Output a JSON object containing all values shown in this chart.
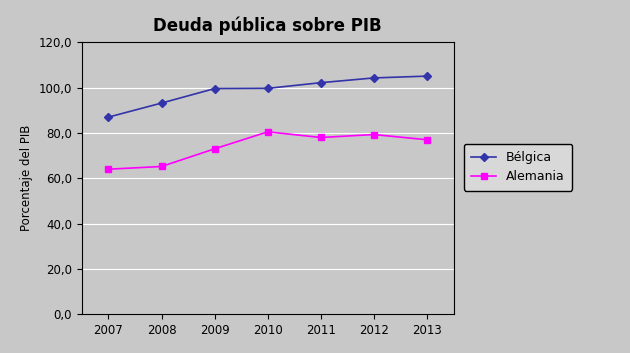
{
  "title": "Deuda pública sobre PIB",
  "ylabel": "Porcentaje del PIB",
  "years": [
    2007,
    2008,
    2009,
    2010,
    2011,
    2012,
    2013
  ],
  "belgica": [
    87.0,
    93.2,
    99.6,
    99.7,
    102.2,
    104.3,
    105.1
  ],
  "alemania": [
    64.0,
    65.2,
    73.0,
    80.5,
    78.0,
    79.3,
    77.0
  ],
  "belgica_color": "#3333AA",
  "alemania_color": "#FF00FF",
  "belgica_label": "Bélgica",
  "alemania_label": "Alemania",
  "ylim": [
    0,
    120
  ],
  "yticks": [
    0,
    20,
    40,
    60,
    80,
    100,
    120
  ],
  "plot_background": "#C8C8C8",
  "outer_background": "#C8C8C8",
  "legend_background": "#C8C8C8",
  "title_fontsize": 12,
  "axis_label_fontsize": 8.5,
  "tick_fontsize": 8.5,
  "legend_fontsize": 9
}
